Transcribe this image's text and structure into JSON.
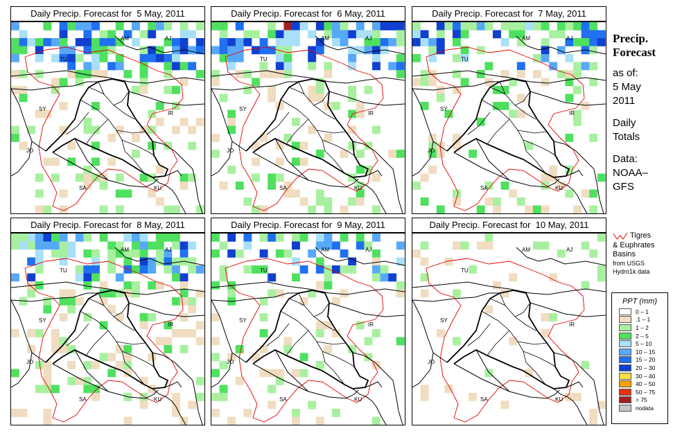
{
  "panels": [
    {
      "title": "Daily Precip. Forecast for  5 May, 2011",
      "day": 0
    },
    {
      "title": "Daily Precip. Forecast for  6 May, 2011",
      "day": 1
    },
    {
      "title": "Daily Precip. Forecast for  7 May, 2011",
      "day": 2
    },
    {
      "title": "Daily Precip. Forecast for  8 May, 2011",
      "day": 3
    },
    {
      "title": "Daily Precip. Forecast for  9 May, 2011",
      "day": 4
    },
    {
      "title": "Daily Precip. Forecast for  10 May, 2011",
      "day": 5
    }
  ],
  "country_labels": [
    "AM",
    "AJ",
    "TU",
    "SY",
    "IR",
    "JO",
    "SA",
    "KU"
  ],
  "sidebar": {
    "title_line1": "Precip.",
    "title_line2": "Forecast",
    "as_of": "as of:",
    "date_line1": "5 May",
    "date_line2": "2011",
    "daily_line1": "Daily",
    "daily_line2": "Totals",
    "data_line1": "Data:",
    "data_line2": "NOAA–",
    "data_line3": "GFS"
  },
  "basin_legend": {
    "line1": "Tigres",
    "line2": "& Euphrates",
    "line3": "Basins",
    "line4": "from USGS",
    "line5": "Hydro1k data",
    "color": "#e00000"
  },
  "ppt_legend": {
    "title": "PPT (mm)",
    "items": [
      {
        "label": "0 – 1",
        "color": "#ffffff"
      },
      {
        "label": ".1 – 1",
        "color": "#f0dcc0"
      },
      {
        "label": "1 – 2",
        "color": "#a8f0a0"
      },
      {
        "label": "2 – 5",
        "color": "#50e060"
      },
      {
        "label": "5 – 10",
        "color": "#a8e0f8"
      },
      {
        "label": "10 – 15",
        "color": "#58a8f8"
      },
      {
        "label": "15 – 20",
        "color": "#2070f0"
      },
      {
        "label": "20 – 30",
        "color": "#1040d0"
      },
      {
        "label": "30 – 40",
        "color": "#f8e040"
      },
      {
        "label": "40 – 50",
        "color": "#f8a000"
      },
      {
        "label": "50 – 75",
        "color": "#e83010"
      },
      {
        "label": "> 75",
        "color": "#a02020"
      },
      {
        "label": "nodata",
        "color": "#c8c8c8"
      }
    ]
  }
}
